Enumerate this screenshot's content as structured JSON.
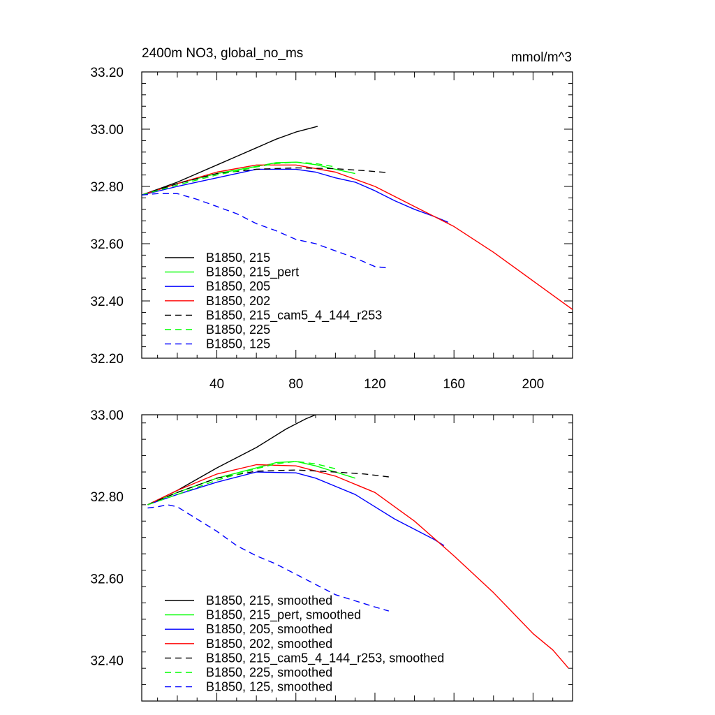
{
  "chart_data": [
    {
      "type": "line",
      "title": "2400m NO3, global_no_ms",
      "units": "mmol/m^3",
      "xlim": [
        2,
        220
      ],
      "ylim": [
        32.2,
        33.2
      ],
      "x_ticks": [
        40,
        80,
        120,
        160,
        200
      ],
      "y_ticks": [
        "32.20",
        "32.40",
        "32.60",
        "32.80",
        "33.00",
        "33.20"
      ],
      "legend_position": "bottom-left",
      "series": [
        {
          "name": "B1850, 215",
          "color": "#000000",
          "dash": "solid",
          "x": [
            2,
            10,
            20,
            30,
            40,
            50,
            60,
            70,
            80,
            91
          ],
          "y": [
            32.77,
            32.79,
            32.815,
            32.845,
            32.875,
            32.905,
            32.935,
            32.965,
            32.99,
            33.01
          ]
        },
        {
          "name": "B1850, 215_pert",
          "color": "#00ff00",
          "dash": "solid",
          "x": [
            2,
            20,
            40,
            60,
            70,
            80,
            90,
            100,
            110
          ],
          "y": [
            32.77,
            32.81,
            32.845,
            32.87,
            32.883,
            32.885,
            32.876,
            32.86,
            32.845
          ]
        },
        {
          "name": "B1850, 205",
          "color": "#0000ff",
          "dash": "solid",
          "x": [
            2,
            20,
            40,
            60,
            80,
            90,
            100,
            110,
            120,
            130,
            140,
            150,
            157
          ],
          "y": [
            32.77,
            32.8,
            32.83,
            32.86,
            32.86,
            32.85,
            32.83,
            32.815,
            32.785,
            32.75,
            32.72,
            32.695,
            32.675
          ]
        },
        {
          "name": "B1850, 202",
          "color": "#ff0000",
          "dash": "solid",
          "x": [
            2,
            20,
            40,
            60,
            80,
            100,
            120,
            140,
            160,
            180,
            200,
            210,
            220
          ],
          "y": [
            32.77,
            32.81,
            32.85,
            32.875,
            32.875,
            32.85,
            32.8,
            32.73,
            32.66,
            32.57,
            32.47,
            32.42,
            32.37
          ]
        },
        {
          "name": "B1850, 215_cam5_4_144_r253",
          "color": "#000000",
          "dash": "dashed",
          "x": [
            2,
            20,
            40,
            60,
            80,
            100,
            115,
            127
          ],
          "y": [
            32.77,
            32.81,
            32.845,
            32.86,
            32.865,
            32.862,
            32.855,
            32.848
          ]
        },
        {
          "name": "B1850, 225",
          "color": "#00ff00",
          "dash": "dashed",
          "x": [
            2,
            20,
            40,
            60,
            70,
            80,
            90,
            100
          ],
          "y": [
            32.77,
            32.805,
            32.84,
            32.868,
            32.88,
            32.885,
            32.88,
            32.868
          ]
        },
        {
          "name": "B1850, 125",
          "color": "#0000ff",
          "dash": "dashed",
          "x": [
            2,
            10,
            20,
            30,
            40,
            50,
            60,
            70,
            80,
            90,
            100,
            110,
            120,
            127
          ],
          "y": [
            32.77,
            32.775,
            32.775,
            32.755,
            32.73,
            32.705,
            32.67,
            32.645,
            32.615,
            32.6,
            32.575,
            32.55,
            32.52,
            32.515
          ]
        }
      ]
    },
    {
      "type": "line",
      "xlim": [
        2,
        220
      ],
      "ylim": [
        32.3,
        33.0
      ],
      "y_ticks": [
        "32.40",
        "32.60",
        "32.80",
        "33.00"
      ],
      "legend_position": "bottom-left",
      "series": [
        {
          "name": "B1850, 215, smoothed",
          "color": "#000000",
          "dash": "solid",
          "x": [
            5,
            20,
            40,
            60,
            75,
            85,
            90
          ],
          "y": [
            32.78,
            32.815,
            32.87,
            32.92,
            32.965,
            32.99,
            33.0
          ]
        },
        {
          "name": "B1850, 215_pert, smoothed",
          "color": "#00ff00",
          "dash": "solid",
          "x": [
            5,
            20,
            40,
            60,
            70,
            80,
            90,
            100,
            110
          ],
          "y": [
            32.78,
            32.81,
            32.845,
            32.87,
            32.883,
            32.886,
            32.875,
            32.86,
            32.845
          ]
        },
        {
          "name": "B1850, 205, smoothed",
          "color": "#0000ff",
          "dash": "solid",
          "x": [
            5,
            20,
            40,
            60,
            80,
            90,
            100,
            110,
            120,
            130,
            140,
            150,
            155
          ],
          "y": [
            32.78,
            32.805,
            32.835,
            32.86,
            32.858,
            32.845,
            32.825,
            32.805,
            32.775,
            32.745,
            32.72,
            32.695,
            32.68
          ]
        },
        {
          "name": "B1850, 202, smoothed",
          "color": "#ff0000",
          "dash": "solid",
          "x": [
            5,
            20,
            40,
            60,
            80,
            100,
            120,
            140,
            160,
            180,
            200,
            210,
            218
          ],
          "y": [
            32.78,
            32.815,
            32.855,
            32.878,
            32.875,
            32.85,
            32.81,
            32.74,
            32.655,
            32.565,
            32.465,
            32.425,
            32.38
          ]
        },
        {
          "name": "B1850, 215_cam5_4_144_r253, smoothed",
          "color": "#000000",
          "dash": "dashed",
          "x": [
            5,
            20,
            40,
            60,
            80,
            100,
            115,
            127
          ],
          "y": [
            32.78,
            32.81,
            32.845,
            32.862,
            32.865,
            32.86,
            32.855,
            32.848
          ]
        },
        {
          "name": "B1850, 225, smoothed",
          "color": "#00ff00",
          "dash": "dashed",
          "x": [
            5,
            20,
            40,
            60,
            70,
            80,
            90,
            100
          ],
          "y": [
            32.78,
            32.805,
            32.84,
            32.868,
            32.88,
            32.886,
            32.88,
            32.868
          ]
        },
        {
          "name": "B1850, 125, smoothed",
          "color": "#0000ff",
          "dash": "dashed",
          "x": [
            5,
            10,
            15,
            20,
            30,
            40,
            50,
            60,
            70,
            80,
            90,
            100,
            110,
            120,
            127
          ],
          "y": [
            32.772,
            32.775,
            32.78,
            32.775,
            32.745,
            32.715,
            32.68,
            32.655,
            32.635,
            32.61,
            32.585,
            32.56,
            32.545,
            32.53,
            32.52
          ]
        }
      ]
    }
  ]
}
